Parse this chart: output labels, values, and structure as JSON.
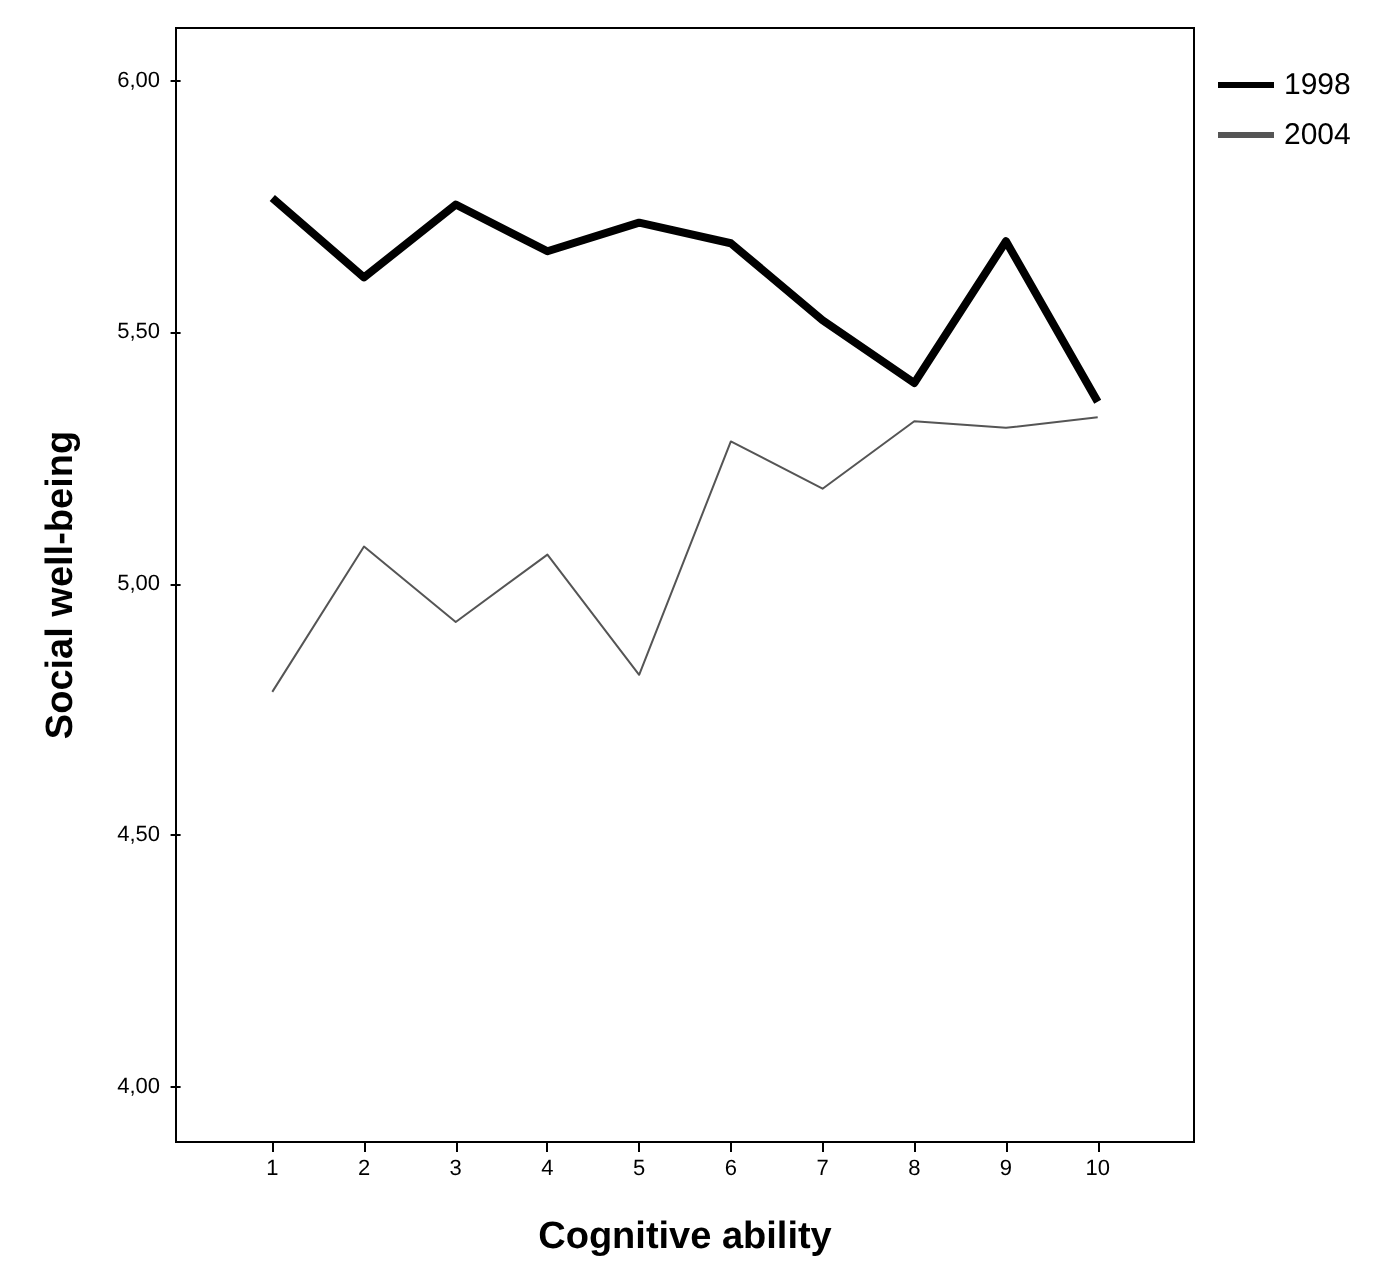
{
  "chart_data": {
    "type": "line",
    "xlabel": "Cognitive ability",
    "ylabel": "Social well-being",
    "x": [
      1,
      2,
      3,
      4,
      5,
      6,
      7,
      8,
      9,
      10
    ],
    "series": [
      {
        "name": "1998",
        "color": "#000000",
        "values": [
          5.767,
          5.609,
          5.754,
          5.661,
          5.718,
          5.677,
          5.524,
          5.399,
          5.681,
          5.362
        ]
      },
      {
        "name": "2004",
        "color": "#555555",
        "values": [
          4.785,
          5.074,
          4.924,
          5.058,
          4.819,
          5.283,
          5.189,
          5.323,
          5.31,
          5.331
        ]
      }
    ],
    "xlim": [
      -0.05,
      11.05
    ],
    "xticks": [
      1,
      2,
      3,
      4,
      5,
      6,
      7,
      8,
      9,
      10
    ],
    "ylim": [
      3.89,
      6.105
    ],
    "yticks": [
      {
        "value": 4,
        "label": "4,00"
      },
      {
        "value": 4.5,
        "label": "4,50"
      },
      {
        "value": 5,
        "label": "5,00"
      },
      {
        "value": 5.5,
        "label": "5,50"
      },
      {
        "value": 6,
        "label": "6,00"
      }
    ],
    "grid": false,
    "legend": "top right",
    "marker": "none",
    "line_style": "solid"
  }
}
